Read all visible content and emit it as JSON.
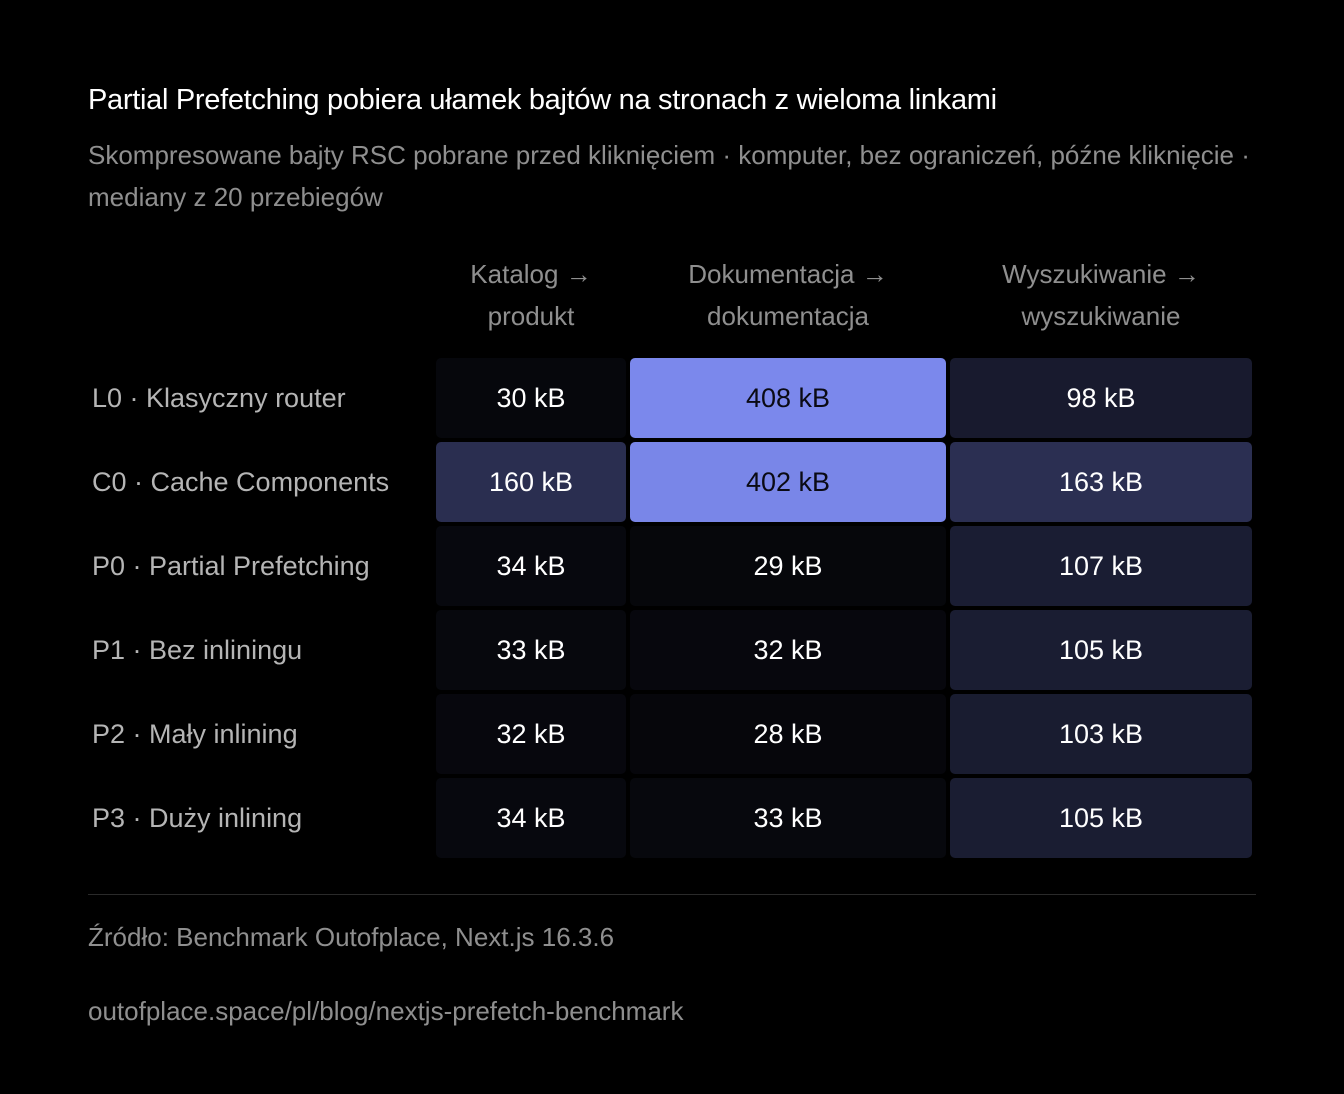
{
  "chart_data": {
    "type": "heatmap",
    "title": "Partial Prefetching pobiera ułamek bajtów na stronach z wieloma linkami",
    "subtitle": "Skompresowane bajty RSC pobrane przed kliknięciem · komputer, bez ograniczeń, późne kliknięcie · mediany z 20 przebiegów",
    "unit": "kB",
    "columns": [
      [
        "Katalog →",
        "produkt"
      ],
      [
        "Dokumentacja →",
        "dokumentacja"
      ],
      [
        "Wyszukiwanie →",
        "wyszukiwanie"
      ]
    ],
    "rows": [
      "L0 · Klasyczny router",
      "C0 · Cache Components",
      "P0 · Partial Prefetching",
      "P1 · Bez inliningu",
      "P2 · Mały inlining",
      "P3 · Duży inlining"
    ],
    "values": [
      [
        30,
        408,
        98
      ],
      [
        160,
        402,
        163
      ],
      [
        34,
        29,
        107
      ],
      [
        33,
        32,
        105
      ],
      [
        32,
        28,
        103
      ],
      [
        34,
        33,
        105
      ]
    ],
    "colors": {
      "low": "#000000",
      "high": "#7b88ec"
    }
  },
  "footer": {
    "source": "Źródło: Benchmark Outofplace, Next.js 16.3.6",
    "url": "outofplace.space/pl/blog/nextjs-prefetch-benchmark"
  }
}
